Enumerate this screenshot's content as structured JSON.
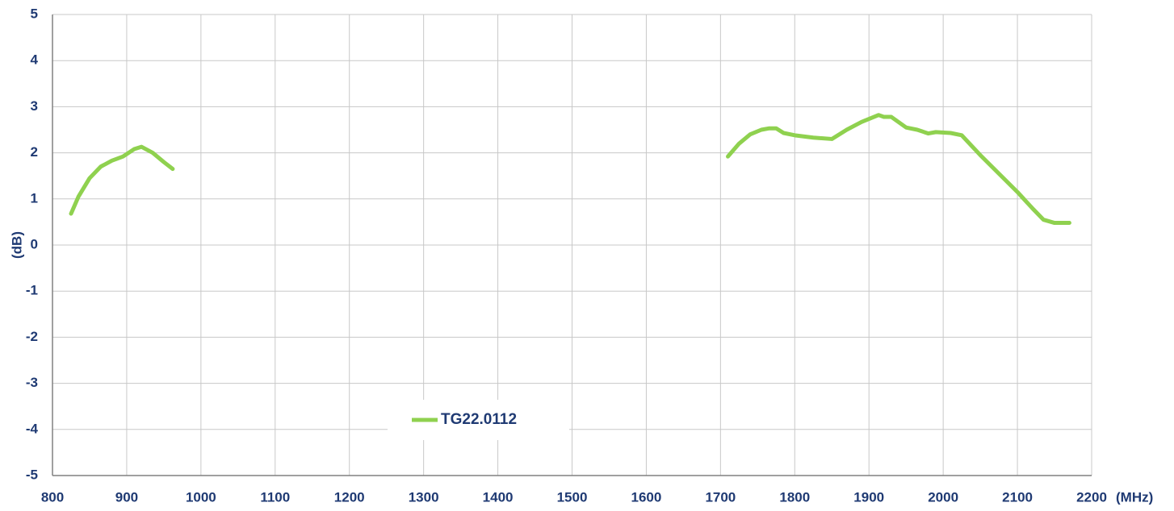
{
  "chart_data": {
    "type": "line",
    "x_label": "(MHz)",
    "y_label": "(dB)",
    "x": [
      825,
      835,
      850,
      865,
      880,
      895,
      910,
      920,
      935,
      950,
      962,
      1300,
      1710,
      1725,
      1740,
      1755,
      1765,
      1775,
      1785,
      1800,
      1825,
      1850,
      1870,
      1890,
      1913,
      1920,
      1930,
      1950,
      1965,
      1980,
      1990,
      2010,
      2025,
      2050,
      2075,
      2100,
      2120,
      2135,
      2150,
      2170
    ],
    "series": [
      {
        "name": "TG22.0112",
        "color": "#8fd14f",
        "values": [
          0.68,
          1.05,
          1.45,
          1.7,
          1.83,
          1.92,
          2.08,
          2.13,
          2.0,
          1.8,
          1.65,
          null,
          1.92,
          2.2,
          2.4,
          2.5,
          2.53,
          2.53,
          2.43,
          2.38,
          2.33,
          2.3,
          2.5,
          2.67,
          2.82,
          2.78,
          2.78,
          2.55,
          2.5,
          2.42,
          2.45,
          2.43,
          2.38,
          1.95,
          1.55,
          1.15,
          0.8,
          0.55,
          0.48,
          0.48
        ]
      }
    ],
    "xlim": [
      800,
      2200
    ],
    "xticks": [
      800,
      900,
      1000,
      1100,
      1200,
      1300,
      1400,
      1500,
      1600,
      1700,
      1800,
      1900,
      2000,
      2100,
      2200
    ],
    "ylim": [
      -5,
      5
    ],
    "yticks": [
      -5,
      -4,
      -3,
      -2,
      -1,
      0,
      1,
      2,
      3,
      4,
      5
    ],
    "grid": true,
    "legend": "lower center"
  }
}
